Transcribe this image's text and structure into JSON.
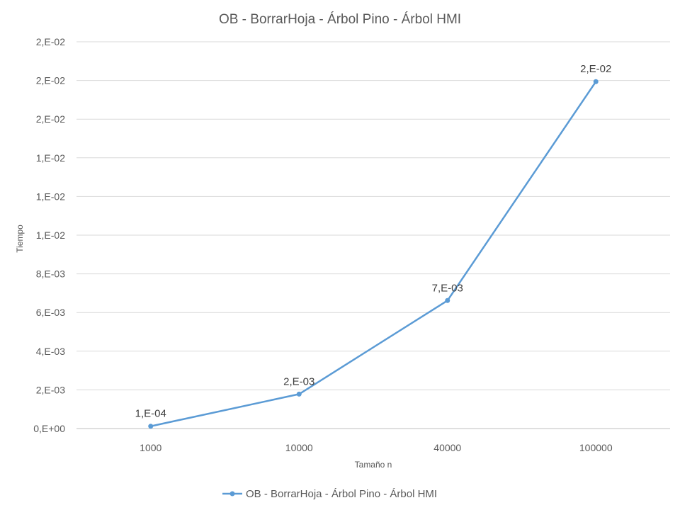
{
  "chart_data": {
    "type": "line",
    "title": "OB - BorrarHoja - Árbol Pino - Árbol HMI",
    "xlabel": "Tamaño n",
    "ylabel": "Tiempo",
    "categories": [
      "1000",
      "10000",
      "40000",
      "100000"
    ],
    "series": [
      {
        "name": "OB - BorrarHoja - Árbol Pino - Árbol HMI",
        "values": [
          0.00012,
          0.00178,
          0.00662,
          0.01794
        ],
        "labels": [
          "1,E-04",
          "2,E-03",
          "7,E-03",
          "2,E-02"
        ],
        "color": "#5b9bd5"
      }
    ],
    "ylim": [
      0,
      0.02
    ],
    "yticks": [
      0,
      0.002,
      0.004,
      0.006,
      0.008,
      0.01,
      0.012,
      0.014,
      0.016,
      0.018,
      0.02
    ],
    "ytick_labels": [
      "0,E+00",
      "2,E-03",
      "4,E-03",
      "6,E-03",
      "8,E-03",
      "1,E-02",
      "1,E-02",
      "1,E-02",
      "2,E-02",
      "2,E-02",
      "2,E-02"
    ],
    "grid": true,
    "legend_position": "bottom"
  }
}
